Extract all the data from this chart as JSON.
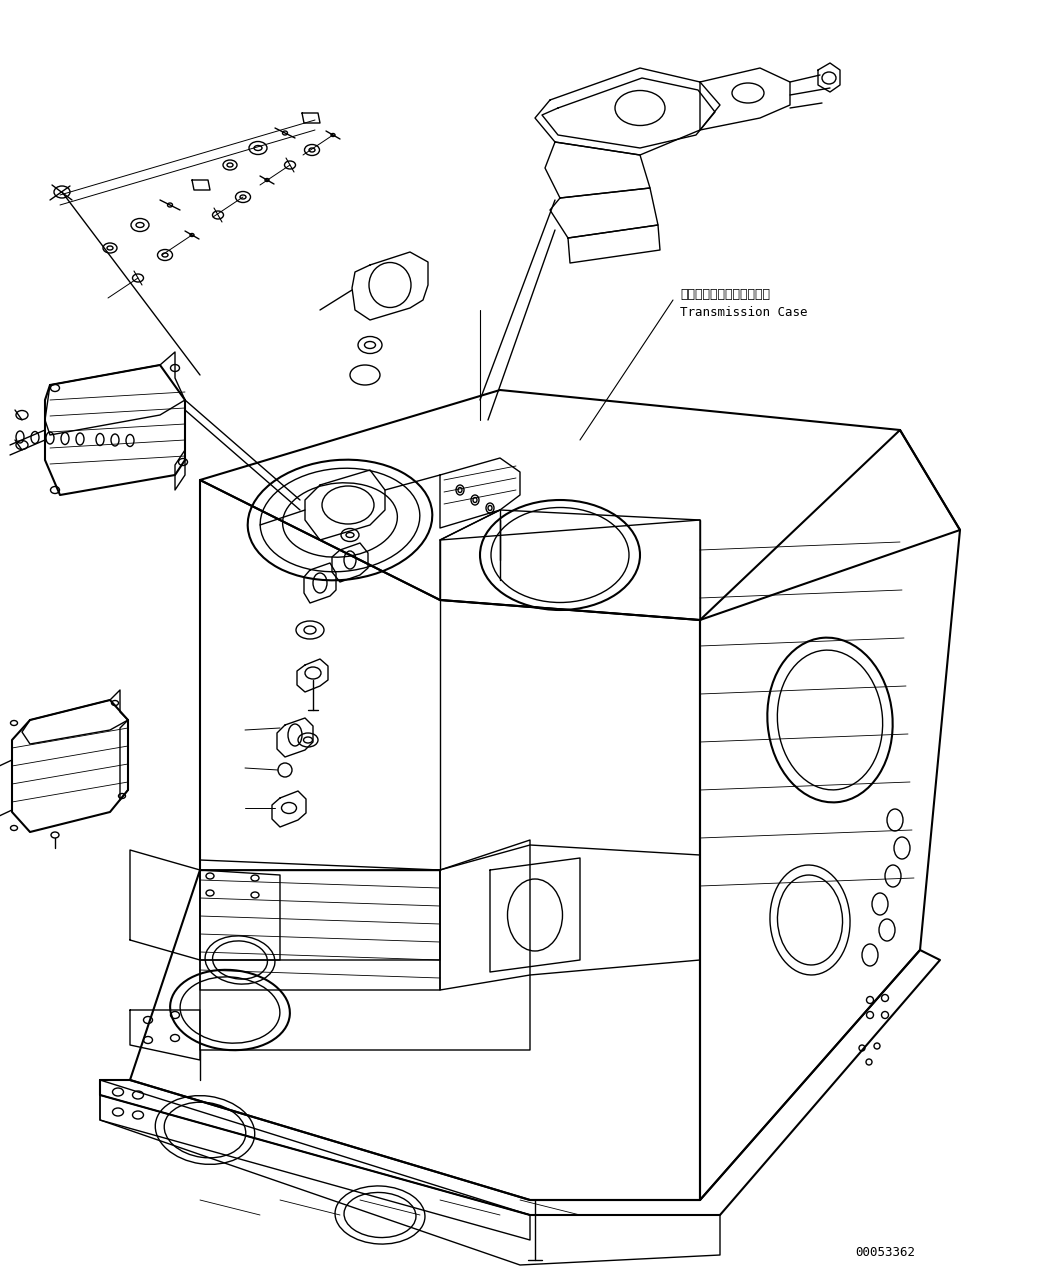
{
  "background_color": "#ffffff",
  "label_japanese": "トランスミッションケース",
  "label_english": "Transmission Case",
  "part_number": "00053362",
  "lc": "#000000",
  "lw": 1.0,
  "lw2": 1.5
}
